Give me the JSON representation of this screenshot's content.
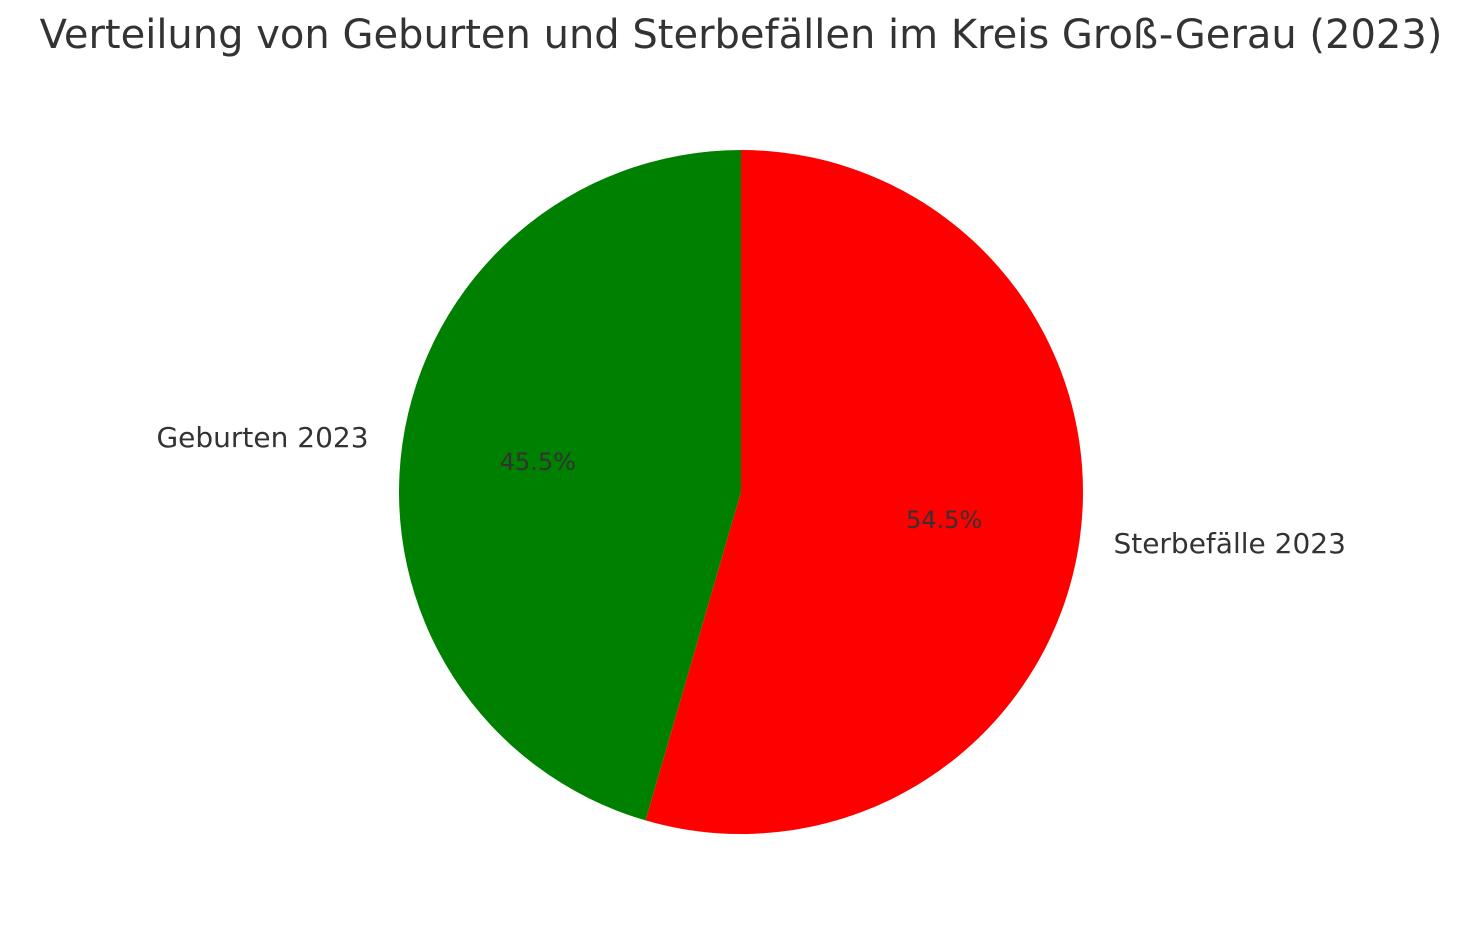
{
  "chart_data": {
    "type": "pie",
    "title": "Verteilung von Geburten und Sterbefällen im Kreis Groß-Gerau (2023)",
    "categories": [
      "Geburten 2023",
      "Sterbefälle 2023"
    ],
    "values": [
      45.5,
      54.5
    ],
    "value_labels": [
      "45.5%",
      "54.5%"
    ],
    "colors": [
      "#008000",
      "#ff0000"
    ]
  }
}
